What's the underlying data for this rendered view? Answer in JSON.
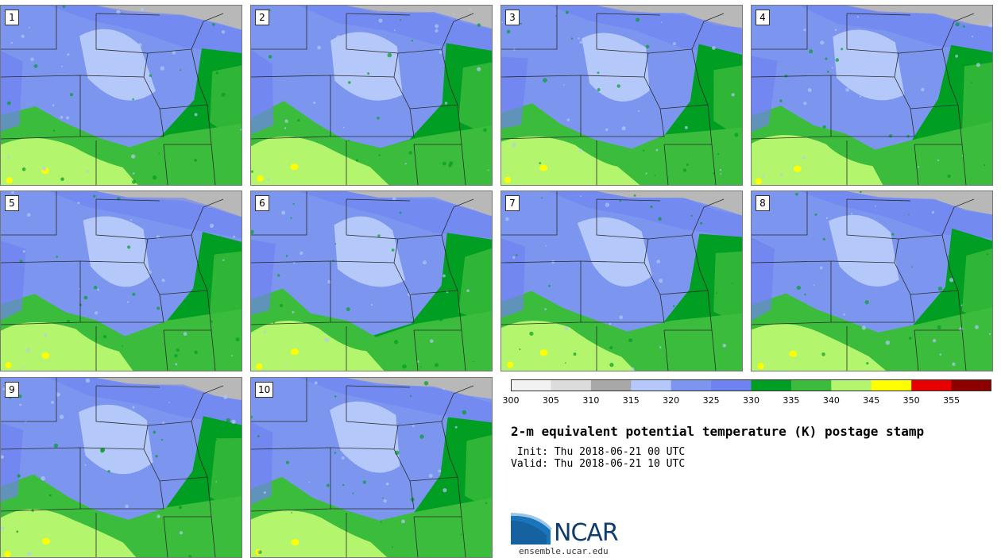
{
  "panels": [
    {
      "label": "1"
    },
    {
      "label": "2"
    },
    {
      "label": "3"
    },
    {
      "label": "4"
    },
    {
      "label": "5"
    },
    {
      "label": "6"
    },
    {
      "label": "7"
    },
    {
      "label": "8"
    },
    {
      "label": "9"
    },
    {
      "label": "10"
    }
  ],
  "colorbar": {
    "ticks": [
      "300",
      "305",
      "310",
      "315",
      "320",
      "325",
      "330",
      "335",
      "340",
      "345",
      "350",
      "355"
    ],
    "colors": [
      "#f2f2f2",
      "#dcdcdc",
      "#a8a8a8",
      "#b4c8fa",
      "#7c96f0",
      "#6e82f0",
      "#009e22",
      "#3cbc3c",
      "#b4f56e",
      "#ffff00",
      "#e60000",
      "#8c0000"
    ]
  },
  "map_colors": {
    "grey_north": "#b8b8b8",
    "light_blue": "#b4c8fa",
    "mid_blue": "#7c96f0",
    "blue": "#6e82f0",
    "dark_green": "#009e22",
    "green": "#3cbc3c",
    "light_green": "#b4f56e",
    "yellow": "#ffff00"
  },
  "text": {
    "title": "2-m equivalent potential temperature (K) postage stamp",
    "init": " Init: Thu 2018-06-21 00 UTC",
    "valid": "Valid: Thu 2018-06-21 10 UTC",
    "logo": "NCAR",
    "site": "ensemble.ucar.edu"
  }
}
